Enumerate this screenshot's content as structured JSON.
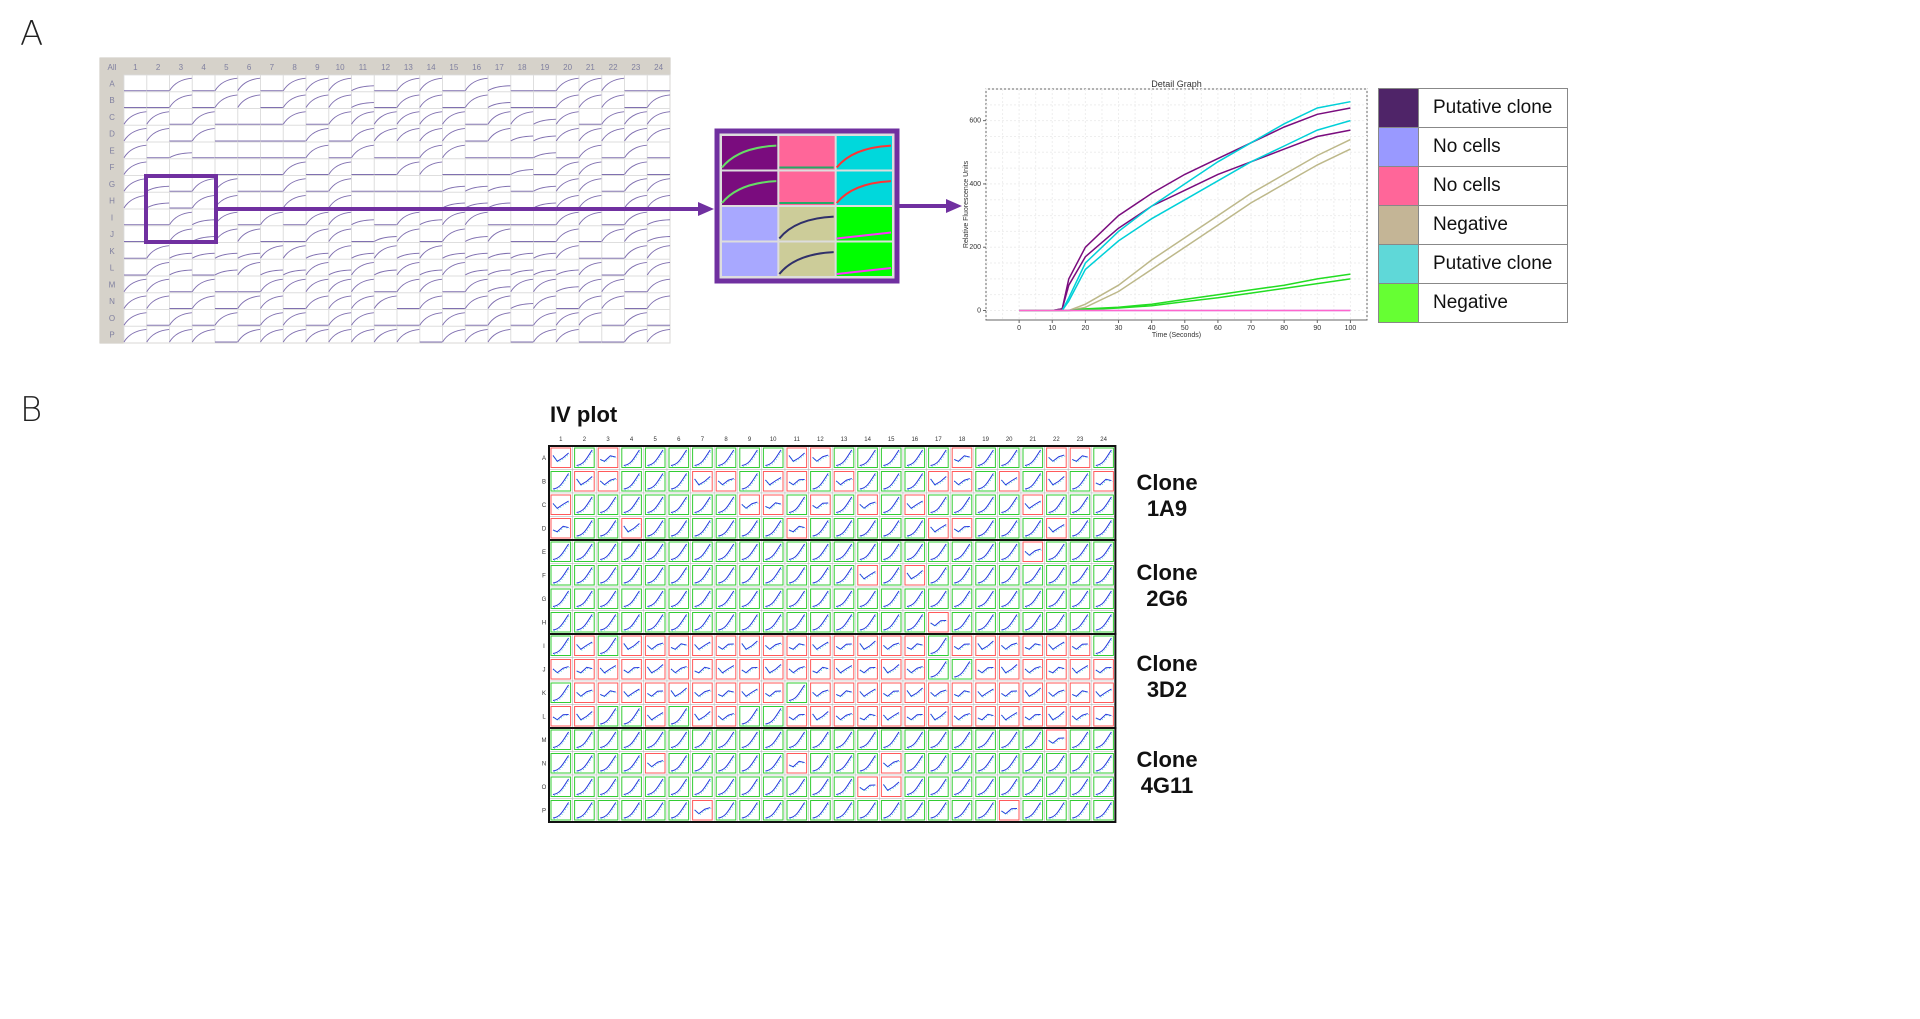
{
  "panel_a": {
    "letter": "A",
    "plate": {
      "corner_label": "All",
      "columns": [
        "1",
        "2",
        "3",
        "4",
        "5",
        "6",
        "7",
        "8",
        "9",
        "10",
        "11",
        "12",
        "13",
        "14",
        "15",
        "16",
        "17",
        "18",
        "19",
        "20",
        "21",
        "22",
        "23",
        "24"
      ],
      "rows": [
        "A",
        "B",
        "C",
        "D",
        "E",
        "F",
        "G",
        "H",
        "I",
        "J",
        "K",
        "L",
        "M",
        "N",
        "O",
        "P"
      ],
      "well_traces": [
        "ffcfccfccclfccfclffcccff",
        "ffcfccfccclfccfclffcccfc",
        "ccfcfffcfccccccfcclcfccc",
        "ccfcffffcfcccccfcllccccc",
        "cflfffffcfcffccffflfcfcf",
        "cffffffcfcffccffflfccfcf",
        "clfccffcfcfffflllflccfcc",
        "clfccffcfcfffflllflccfcc",
        "ffclcfcfcclfclccfffccfcl",
        "ffclccffccflcfclcffcfccl",
        "fcllllcclclclclllllcffcc",
        "fclflcllclclclclllllcfcc",
        "ccfcffcccccfccfclcclccfc",
        "ccfcfccfccccfcfcclcfccfc",
        "cfcfcfccfccffccfcfcccfcf",
        "ccccfccccccccfcccfccffcc"
      ]
    },
    "zoom_grid": {
      "cells": [
        [
          "#7a0c7e",
          "#ff6699",
          "#00d8dc"
        ],
        [
          "#7a0c7e",
          "#ff6699",
          "#00d8dc"
        ],
        [
          "#a8a8ff",
          "#cccc99",
          "#00ff00"
        ],
        [
          "#a8a8ff",
          "#cccc99",
          "#00ff00"
        ]
      ],
      "accent": "#7030a0"
    },
    "chart_data": {
      "type": "line",
      "title": "Detail Graph",
      "xlabel": "Time (Seconds)",
      "ylabel": "Relative Fluorescence Units",
      "xlim": [
        -10,
        105
      ],
      "ylim": [
        -30,
        700
      ],
      "xticks": [
        0,
        10,
        20,
        30,
        40,
        50,
        60,
        70,
        80,
        90,
        100
      ],
      "yticks": [
        0,
        200,
        400,
        600
      ],
      "grid": true,
      "x": [
        0,
        10,
        13,
        15,
        20,
        30,
        40,
        50,
        60,
        70,
        80,
        90,
        100
      ],
      "series": [
        {
          "color": "#7a0c7e",
          "values": [
            0,
            0,
            5,
            100,
            200,
            300,
            370,
            430,
            480,
            530,
            580,
            620,
            640
          ]
        },
        {
          "color": "#7a0c7e",
          "values": [
            0,
            0,
            5,
            80,
            170,
            260,
            330,
            380,
            430,
            470,
            510,
            550,
            570
          ]
        },
        {
          "color": "#00d0d8",
          "values": [
            0,
            0,
            0,
            40,
            150,
            250,
            330,
            400,
            470,
            530,
            590,
            640,
            660
          ]
        },
        {
          "color": "#00d0d8",
          "values": [
            0,
            0,
            0,
            30,
            130,
            220,
            290,
            350,
            410,
            470,
            520,
            570,
            600
          ]
        },
        {
          "color": "#bdb88a",
          "values": [
            0,
            0,
            0,
            0,
            20,
            80,
            160,
            230,
            300,
            370,
            430,
            490,
            540
          ]
        },
        {
          "color": "#bdb88a",
          "values": [
            0,
            0,
            0,
            0,
            10,
            60,
            130,
            200,
            270,
            340,
            400,
            460,
            510
          ]
        },
        {
          "color": "#22dd22",
          "values": [
            0,
            0,
            0,
            0,
            5,
            10,
            20,
            35,
            50,
            65,
            80,
            100,
            115
          ]
        },
        {
          "color": "#22dd22",
          "values": [
            0,
            0,
            0,
            0,
            3,
            8,
            15,
            28,
            40,
            55,
            70,
            85,
            100
          ]
        },
        {
          "color": "#a8a8ff",
          "values": [
            0,
            0,
            0,
            0,
            0,
            0,
            0,
            0,
            0,
            0,
            0,
            0,
            0
          ]
        },
        {
          "color": "#ff66cc",
          "values": [
            0,
            0,
            0,
            0,
            0,
            0,
            0,
            0,
            0,
            0,
            0,
            0,
            0
          ]
        }
      ]
    },
    "legend": [
      {
        "label": "Putative clone",
        "color": "#4f2468"
      },
      {
        "label": "No cells",
        "color": "#9999ff"
      },
      {
        "label": "No cells",
        "color": "#ff6699"
      },
      {
        "label": "Negative",
        "color": "#c4b596"
      },
      {
        "label": "Putative clone",
        "color": "#5fd8d8"
      },
      {
        "label": "Negative",
        "color": "#66ff33"
      }
    ]
  },
  "panel_b": {
    "letter": "B",
    "title": "IV plot",
    "columns": [
      "1",
      "2",
      "3",
      "4",
      "5",
      "6",
      "7",
      "8",
      "9",
      "10",
      "11",
      "12",
      "13",
      "14",
      "15",
      "16",
      "17",
      "18",
      "19",
      "20",
      "21",
      "22",
      "23",
      "24"
    ],
    "rows": [
      "A",
      "B",
      "C",
      "D",
      "E",
      "F",
      "G",
      "H",
      "I",
      "J",
      "K",
      "L",
      "M",
      "N",
      "O",
      "P"
    ],
    "well_status": [
      "RGRGGGGGGGRRGGGGGRGGGRRG",
      "GRRGGGRRGRRGRGGGRRGRGRGR",
      "RGGGGGGGRRGRGRGRGGGGRGGG",
      "RGGRGGGGGGRGGGGGRRGGGRGG",
      "GGGGGGGGGGGGGGGGGGGGRGGG",
      "GGGGGGGGGGGGGRGRGGGGGGGG",
      "GGGGGGGGGGGGGGGGGGGGGGGG",
      "GGGGGGGGGGGGGGGGRGGGGGGG",
      "GRGRRRRRRRRRRRRRGRRRRRRG",
      "RRRRRRRRRRRRRRRRGGRRRRRR",
      "GRRRRRRRRRGRRRRRRRRRRRRR",
      "RRGGRGRRGGRRRRRRRRRRRRRR",
      "GGGGGGGGGGGGGGGGGGGGGRGG",
      "GGGGRGGGGGRGGGRGGGGGGGGG",
      "GGGGGGGGGGGGGRRGGGGGGGGG",
      "GGGGGGRGGGGGGGGGGGGRGGGG"
    ],
    "status_colors": {
      "R": "#ff5a5a",
      "G": "#33cc33"
    },
    "clones": [
      {
        "line1": "Clone",
        "line2": "1A9"
      },
      {
        "line1": "Clone",
        "line2": "2G6"
      },
      {
        "line1": "Clone",
        "line2": "3D2"
      },
      {
        "line1": "Clone",
        "line2": "4G11"
      }
    ]
  }
}
